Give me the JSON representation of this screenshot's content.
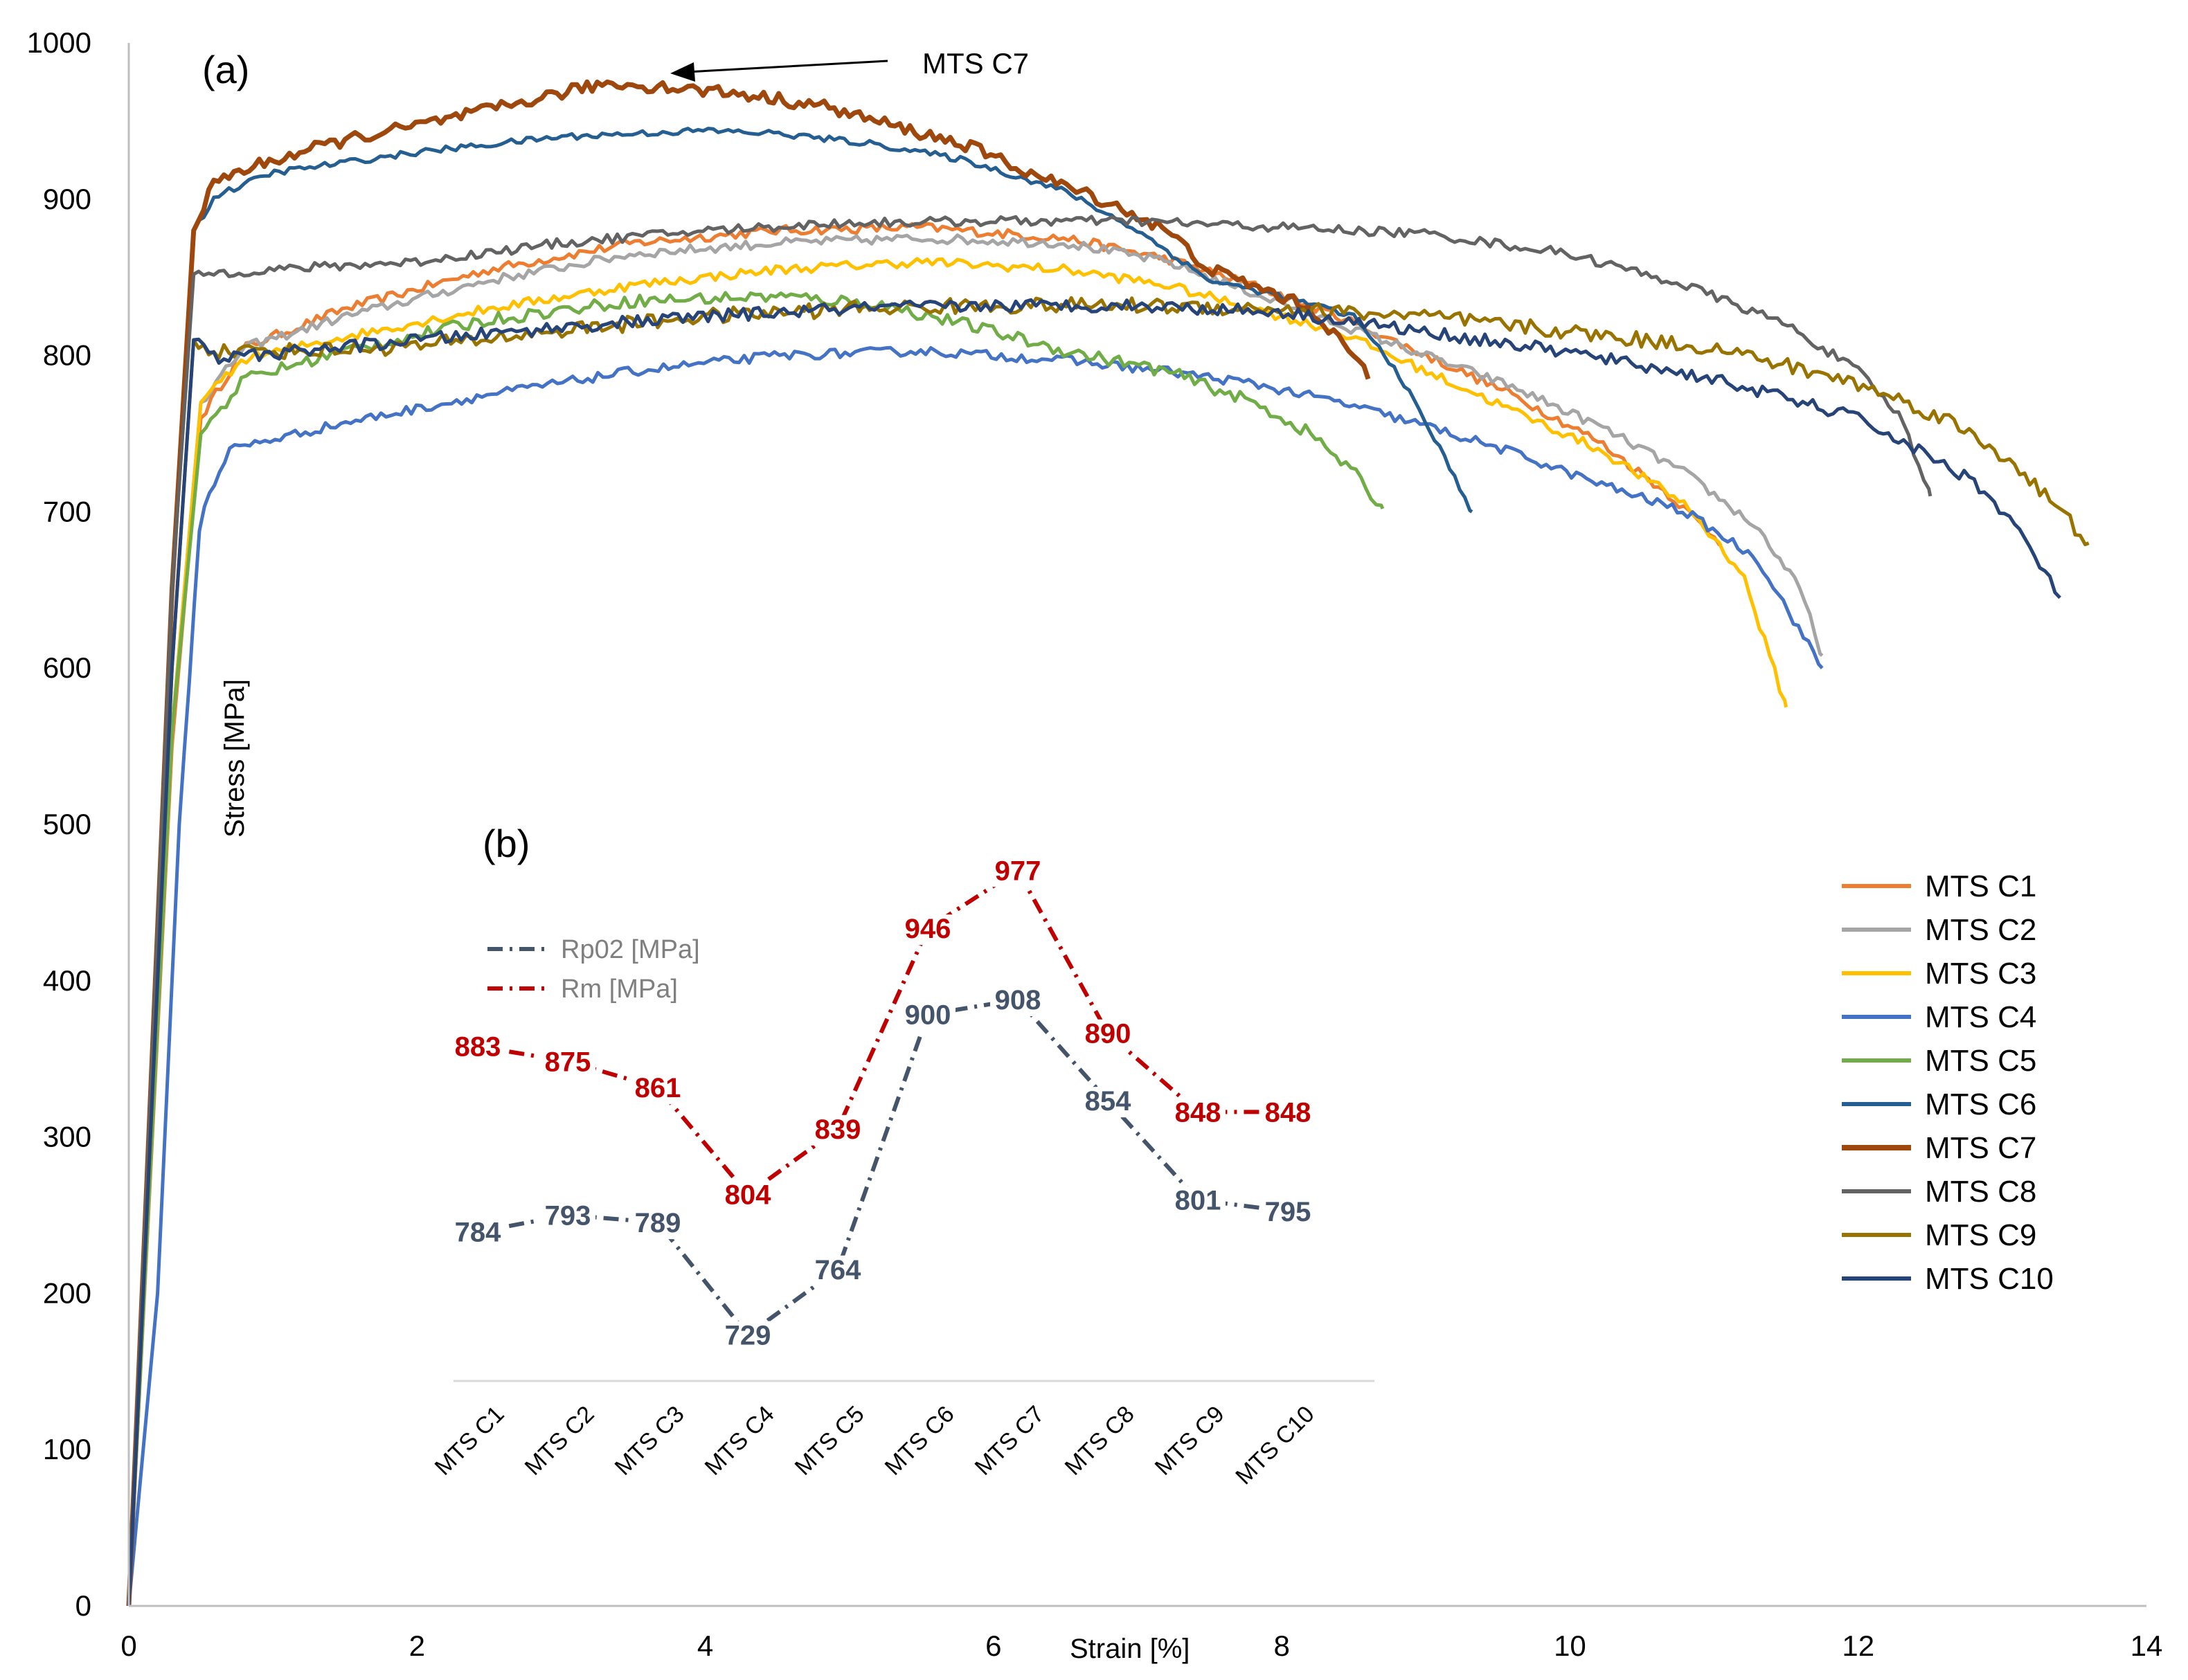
{
  "chart_data": [
    {
      "type": "line",
      "panel": "(a)",
      "xlabel": "Strain [%]",
      "ylabel": "Stress [MPa]",
      "xlim": [
        0,
        14
      ],
      "ylim": [
        0,
        1000
      ],
      "xticks": [
        "0",
        "2",
        "4",
        "6",
        "8",
        "10",
        "12",
        "14"
      ],
      "yticks": [
        "0",
        "100",
        "200",
        "300",
        "400",
        "500",
        "600",
        "700",
        "800",
        "900",
        "1000"
      ],
      "annotation": {
        "text": "MTS C7",
        "points_to": [
          3.7,
          975
        ]
      },
      "legend": [
        "MTS C1",
        "MTS C2",
        "MTS C3",
        "MTS C4",
        "MTS C5",
        "MTS C6",
        "MTS C7",
        "MTS C8",
        "MTS C9",
        "MTS C10"
      ],
      "series": [
        {
          "name": "MTS C1",
          "color": "#ED7D31",
          "width": 5,
          "noise": 3,
          "points": [
            [
              0,
              0
            ],
            [
              0.3,
              550
            ],
            [
              0.5,
              760
            ],
            [
              0.8,
              805
            ],
            [
              1.5,
              830
            ],
            [
              2.5,
              855
            ],
            [
              3.5,
              872
            ],
            [
              4.5,
              880
            ],
            [
              5.5,
              882
            ],
            [
              6.5,
              875
            ],
            [
              7.2,
              862
            ],
            [
              7.8,
              845
            ],
            [
              8.4,
              825
            ],
            [
              9,
              800
            ],
            [
              9.6,
              775
            ],
            [
              10.2,
              745
            ],
            [
              10.7,
              710
            ],
            [
              11.05,
              680
            ]
          ]
        },
        {
          "name": "MTS C2",
          "color": "#A5A5A5",
          "width": 5,
          "noise": 3,
          "points": [
            [
              0,
              0
            ],
            [
              0.3,
              560
            ],
            [
              0.5,
              770
            ],
            [
              0.8,
              805
            ],
            [
              1.5,
              825
            ],
            [
              2.5,
              848
            ],
            [
              3.5,
              865
            ],
            [
              4.5,
              872
            ],
            [
              5.5,
              875
            ],
            [
              6.5,
              872
            ],
            [
              7.2,
              860
            ],
            [
              7.8,
              840
            ],
            [
              8.4,
              820
            ],
            [
              9,
              800
            ],
            [
              9.6,
              780
            ],
            [
              10.2,
              755
            ],
            [
              10.8,
              725
            ],
            [
              11.3,
              690
            ],
            [
              11.6,
              650
            ],
            [
              11.75,
              608
            ]
          ]
        },
        {
          "name": "MTS C3",
          "color": "#FFC000",
          "width": 5,
          "noise": 3,
          "points": [
            [
              0,
              0
            ],
            [
              0.3,
              560
            ],
            [
              0.5,
              770
            ],
            [
              0.8,
              798
            ],
            [
              1.5,
              812
            ],
            [
              2.5,
              830
            ],
            [
              3.5,
              845
            ],
            [
              4.5,
              855
            ],
            [
              5.5,
              860
            ],
            [
              6.5,
              855
            ],
            [
              7.2,
              845
            ],
            [
              7.8,
              830
            ],
            [
              8.4,
              815
            ],
            [
              9,
              790
            ],
            [
              9.6,
              765
            ],
            [
              10.2,
              740
            ],
            [
              10.8,
              705
            ],
            [
              11.2,
              660
            ],
            [
              11.5,
              575
            ]
          ]
        },
        {
          "name": "MTS C4",
          "color": "#4472C4",
          "width": 5,
          "noise": 3,
          "points": [
            [
              0,
              0
            ],
            [
              0.2,
              200
            ],
            [
              0.35,
              500
            ],
            [
              0.5,
              700
            ],
            [
              0.7,
              740
            ],
            [
              1.5,
              757
            ],
            [
              2.5,
              775
            ],
            [
              3.5,
              790
            ],
            [
              4.5,
              800
            ],
            [
              5.5,
              803
            ],
            [
              6.5,
              797
            ],
            [
              7.2,
              790
            ],
            [
              7.8,
              782
            ],
            [
              8.4,
              770
            ],
            [
              9,
              755
            ],
            [
              9.6,
              738
            ],
            [
              10.2,
              718
            ],
            [
              10.8,
              700
            ],
            [
              11.3,
              670
            ],
            [
              11.75,
              600
            ]
          ]
        },
        {
          "name": "MTS C5",
          "color": "#70AD47",
          "width": 5,
          "noise": 4,
          "points": [
            [
              0,
              0
            ],
            [
              0.3,
              560
            ],
            [
              0.5,
              750
            ],
            [
              0.8,
              785
            ],
            [
              1.5,
              803
            ],
            [
              2.5,
              823
            ],
            [
              3.5,
              835
            ],
            [
              4.5,
              838
            ],
            [
              5.2,
              833
            ],
            [
              5.8,
              820
            ],
            [
              6.5,
              803
            ],
            [
              7.2,
              790
            ],
            [
              7.8,
              770
            ],
            [
              8.2,
              750
            ],
            [
              8.5,
              725
            ],
            [
              8.7,
              702
            ]
          ]
        },
        {
          "name": "MTS C6",
          "color": "#255E91",
          "width": 5,
          "noise": 2,
          "points": [
            [
              0,
              0
            ],
            [
              0.3,
              650
            ],
            [
              0.45,
              880
            ],
            [
              0.6,
              902
            ],
            [
              1,
              917
            ],
            [
              2,
              930
            ],
            [
              3,
              940
            ],
            [
              4,
              944
            ],
            [
              4.5,
              942
            ],
            [
              5.2,
              935
            ],
            [
              5.8,
              925
            ],
            [
              6.5,
              905
            ],
            [
              7,
              880
            ],
            [
              7.5,
              848
            ],
            [
              8,
              838
            ],
            [
              8.5,
              825
            ],
            [
              8.8,
              790
            ],
            [
              9.1,
              740
            ],
            [
              9.32,
              700
            ]
          ]
        },
        {
          "name": "MTS C7",
          "color": "#9E480E",
          "width": 7,
          "noise": 4,
          "points": [
            [
              0,
              0
            ],
            [
              0.3,
              650
            ],
            [
              0.45,
              880
            ],
            [
              0.6,
              912
            ],
            [
              1,
              925
            ],
            [
              1.5,
              938
            ],
            [
              2,
              947
            ],
            [
              2.5,
              957
            ],
            [
              3,
              968
            ],
            [
              3.3,
              974
            ],
            [
              3.7,
              972
            ],
            [
              4.2,
              968
            ],
            [
              4.8,
              960
            ],
            [
              5.3,
              947
            ],
            [
              5.8,
              935
            ],
            [
              6.3,
              915
            ],
            [
              6.8,
              898
            ],
            [
              7.2,
              880
            ],
            [
              7.5,
              855
            ],
            [
              7.8,
              845
            ],
            [
              8.2,
              830
            ],
            [
              8.5,
              800
            ],
            [
              8.6,
              785
            ]
          ]
        },
        {
          "name": "MTS C8",
          "color": "#636363",
          "width": 5,
          "noise": 3,
          "points": [
            [
              0,
              0
            ],
            [
              0.3,
              650
            ],
            [
              0.45,
              852
            ],
            [
              1,
              855
            ],
            [
              2,
              860
            ],
            [
              3,
              872
            ],
            [
              4,
              880
            ],
            [
              5,
              885
            ],
            [
              6,
              886
            ],
            [
              7,
              886
            ],
            [
              8,
              882
            ],
            [
              9,
              878
            ],
            [
              10,
              865
            ],
            [
              10.8,
              845
            ],
            [
              11.5,
              820
            ],
            [
              12,
              790
            ],
            [
              12.3,
              760
            ],
            [
              12.5,
              710
            ]
          ]
        },
        {
          "name": "MTS C9",
          "color": "#997300",
          "width": 5,
          "noise": 5,
          "points": [
            [
              0,
              0
            ],
            [
              0.3,
              600
            ],
            [
              0.45,
              810
            ],
            [
              0.6,
              803
            ],
            [
              1.2,
              803
            ],
            [
              2,
              806
            ],
            [
              3,
              816
            ],
            [
              4,
              825
            ],
            [
              5,
              830
            ],
            [
              6,
              832
            ],
            [
              7,
              832
            ],
            [
              8,
              830
            ],
            [
              9,
              825
            ],
            [
              10,
              815
            ],
            [
              11,
              805
            ],
            [
              12,
              782
            ],
            [
              12.6,
              760
            ],
            [
              13.1,
              730
            ],
            [
              13.6,
              680
            ]
          ]
        },
        {
          "name": "MTS C10",
          "color": "#264478",
          "width": 5,
          "noise": 4,
          "points": [
            [
              0,
              0
            ],
            [
              0.3,
              600
            ],
            [
              0.45,
              810
            ],
            [
              0.6,
              798
            ],
            [
              1.2,
              803
            ],
            [
              2,
              810
            ],
            [
              3,
              818
            ],
            [
              4,
              825
            ],
            [
              5,
              830
            ],
            [
              6,
              832
            ],
            [
              7,
              832
            ],
            [
              8,
              828
            ],
            [
              9,
              815
            ],
            [
              10,
              802
            ],
            [
              11,
              785
            ],
            [
              12,
              760
            ],
            [
              12.8,
              720
            ],
            [
              13.1,
              690
            ],
            [
              13.4,
              645
            ]
          ]
        }
      ]
    },
    {
      "type": "line",
      "panel": "(b)",
      "categories": [
        "MTS C1",
        "MTS C2",
        "MTS C3",
        "MTS C4",
        "MTS C5",
        "MTS C6",
        "MTS C7",
        "MTS C8",
        "MTS C9",
        "MTS C10"
      ],
      "series": [
        {
          "name": "Rp02 [MPa]",
          "color": "#44546A",
          "values": [
            784,
            793,
            789,
            729,
            764,
            900,
            908,
            854,
            801,
            795
          ]
        },
        {
          "name": "Rm [MPa]",
          "color": "#C00000",
          "values": [
            883,
            875,
            861,
            804,
            839,
            946,
            977,
            890,
            848,
            848
          ]
        }
      ],
      "ylim": [
        700,
        1000
      ]
    }
  ]
}
